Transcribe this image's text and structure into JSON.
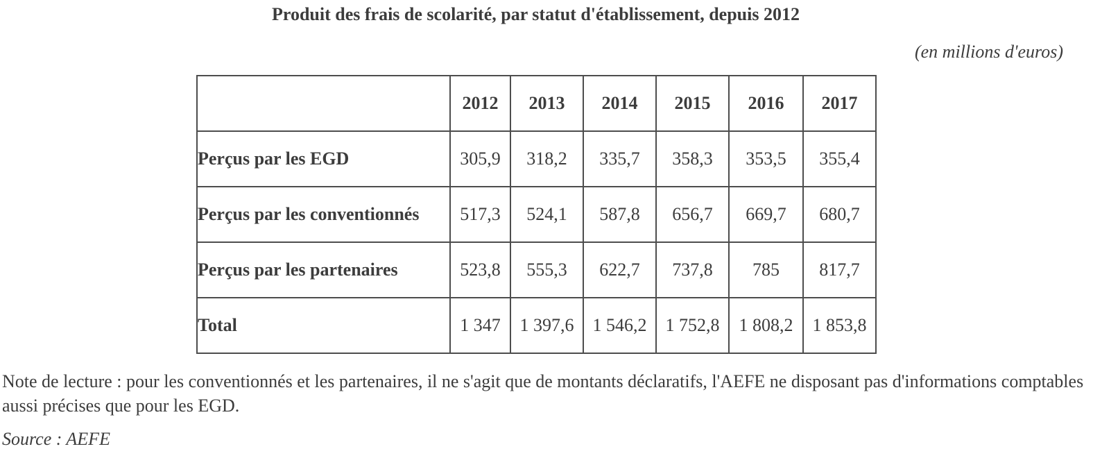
{
  "page": {
    "title": "Produit des frais de scolarité, par statut d'établissement, depuis 2012",
    "unit_label": "(en millions d'euros)",
    "note": "Note de lecture : pour les conventionnés et les partenaires, il ne s'agit que de montants déclaratifs, l'AEFE ne disposant pas d'informations comptables aussi précises que pour les EGD.",
    "source": "Source : AEFE"
  },
  "table": {
    "corner_label": "",
    "columns": [
      "2012",
      "2013",
      "2014",
      "2015",
      "2016",
      "2017"
    ],
    "rows": [
      {
        "label": "Perçus par les EGD",
        "values": [
          "305,9",
          "318,2",
          "335,7",
          "358,3",
          "353,5",
          "355,4"
        ]
      },
      {
        "label": "Perçus par les conventionnés",
        "values": [
          "517,3",
          "524,1",
          "587,8",
          "656,7",
          "669,7",
          "680,7"
        ]
      },
      {
        "label": "Perçus par les partenaires",
        "values": [
          "523,8",
          "555,3",
          "622,7",
          "737,8",
          "785",
          "817,7"
        ]
      },
      {
        "label": "Total",
        "values": [
          "1 347",
          "1 397,6",
          "1 546,2",
          "1 752,8",
          "1 808,2",
          "1 853,8"
        ]
      }
    ]
  },
  "colors": {
    "text": "#3c3c3c",
    "border": "#4d4d4d",
    "background": "#ffffff"
  }
}
